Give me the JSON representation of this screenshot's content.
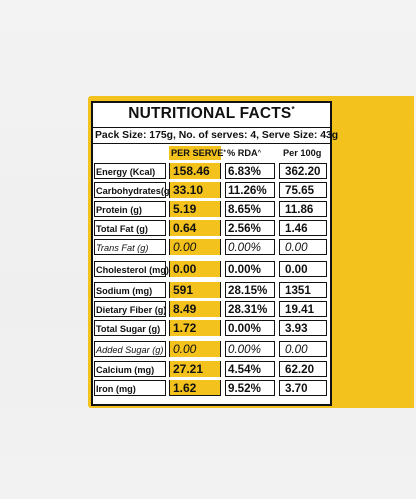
{
  "label": {
    "title": "NUTRITIONAL FACTS",
    "title_mark": "*",
    "pack_line": "Pack Size: 175g, No. of serves: 4, Serve Size: 43g",
    "headers": {
      "per_serve": "PER SERVE",
      "per_serve_mark": "*",
      "rda": "% RDA",
      "rda_mark": "^",
      "per_100g": "Per 100g"
    },
    "rows": [
      {
        "name": "Energy (Kcal)",
        "serve": "158.46",
        "rda": "6.83%",
        "per100": "362.20"
      },
      {
        "name": "Carbohydrates(g)",
        "serve": "33.10",
        "rda": "11.26%",
        "per100": "75.65"
      },
      {
        "name": "Protein (g)",
        "serve": "5.19",
        "rda": "8.65%",
        "per100": "11.86"
      },
      {
        "name": "Total Fat (g)",
        "serve": "0.64",
        "rda": "2.56%",
        "per100": "1.46"
      },
      {
        "name": "Trans Fat (g)",
        "serve": "0.00",
        "rda": "0.00%",
        "per100": "0.00"
      },
      {
        "name": "Cholesterol (mg)",
        "serve": "0.00",
        "rda": "0.00%",
        "per100": "0.00"
      },
      {
        "name": "Sodium (mg)",
        "serve": "591",
        "rda": "28.15%",
        "per100": "1351"
      },
      {
        "name": "Dietary Fiber (g)",
        "serve": "8.49",
        "rda": "28.31%",
        "per100": "19.41"
      },
      {
        "name": "Total Sugar (g)",
        "serve": "1.72",
        "rda": "0.00%",
        "per100": "3.93"
      },
      {
        "name": "Added Sugar (g)",
        "serve": "0.00",
        "rda": "0.00%",
        "per100": "0.00"
      },
      {
        "name": "Calcium (mg)",
        "serve": "27.21",
        "rda": "4.54%",
        "per100": "62.20"
      },
      {
        "name": "Iron (mg)",
        "serve": "1.62",
        "rda": "9.52%",
        "per100": "3.70"
      }
    ]
  },
  "colors": {
    "accent_yellow": "#f3c21d",
    "ink": "#111111",
    "background": "#f1f1f1"
  }
}
